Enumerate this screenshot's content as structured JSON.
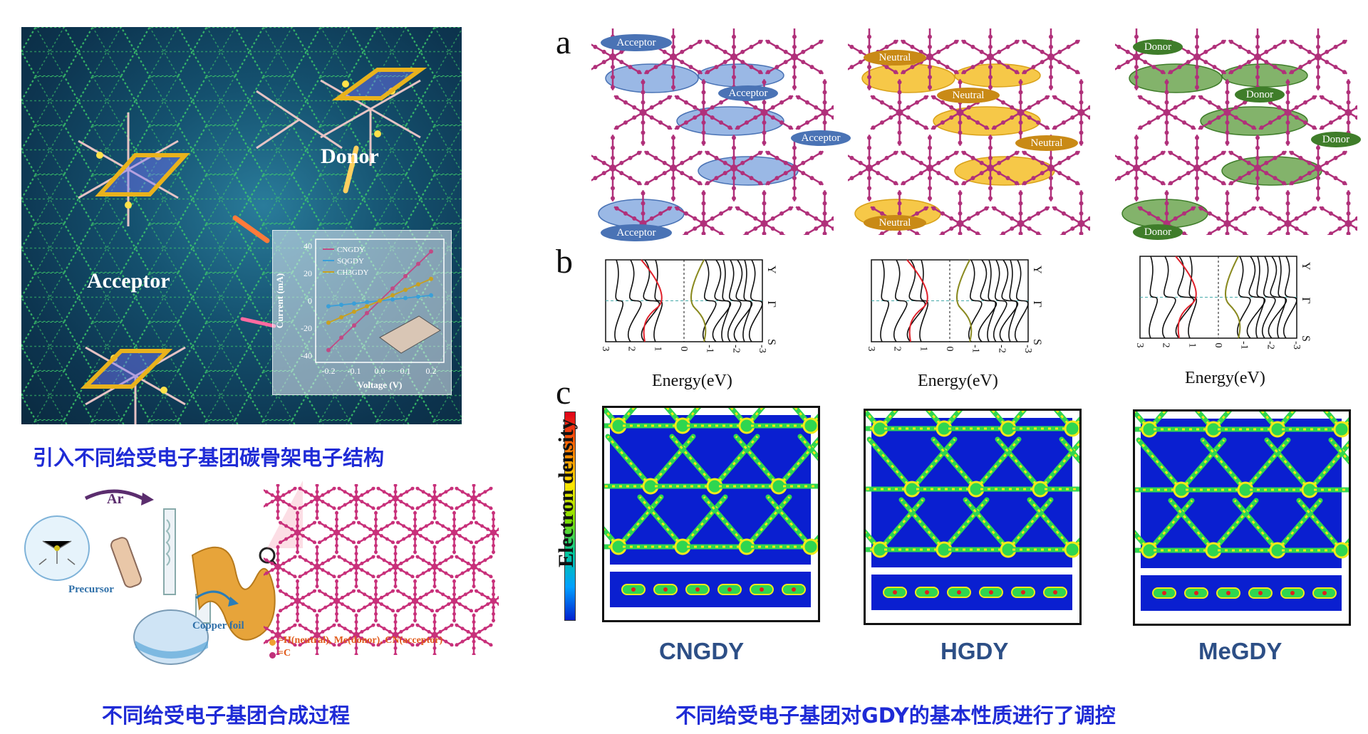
{
  "captions": {
    "left_top": "引入不同给受电子基团碳骨架电子结构",
    "left_bottom": "不同给受电子基团合成过程",
    "right_bottom": "不同给受电子基团对GDY的基本性质进行了调控"
  },
  "cover_figure": {
    "donor_label": "Donor",
    "acceptor_label": "Acceptor",
    "inset": {
      "y_axis_label": "Current (mA)",
      "x_axis_label": "Voltage (V)",
      "x_ticks": [
        "-0.2",
        "-0.1",
        "0.0",
        "0.1",
        "0.2"
      ],
      "y_ticks": [
        "40",
        "20",
        "0",
        "-20",
        "-40"
      ],
      "legend": [
        "CNGDY",
        "SQGDY",
        "CH3GDY"
      ],
      "legend_colors": [
        "#c04a85",
        "#3a9fd8",
        "#c8a020"
      ]
    }
  },
  "chart_data": {
    "type": "line",
    "title": "",
    "xlabel": "Voltage (V)",
    "ylabel": "Current (mA)",
    "xlim": [
      -0.25,
      0.25
    ],
    "ylim": [
      -45,
      45
    ],
    "x": [
      -0.2,
      -0.15,
      -0.1,
      -0.05,
      0.0,
      0.05,
      0.1,
      0.15,
      0.2
    ],
    "series": [
      {
        "name": "CNGDY",
        "values": [
          -36,
          -27,
          -18,
          -9,
          0,
          9,
          18,
          27,
          36
        ]
      },
      {
        "name": "SQGDY",
        "values": [
          -4,
          -3,
          -2,
          -1,
          0,
          1,
          2,
          3,
          4
        ]
      },
      {
        "name": "CH3GDY",
        "values": [
          -16,
          -12,
          -8,
          -4,
          0,
          4,
          8,
          12,
          16
        ]
      }
    ]
  },
  "synthesis": {
    "gas_label": "Ar",
    "precursor_label": "Precursor",
    "foil_label": "Copper foil",
    "legend_line1": "=H(neutral), Me(donor), CN(acceptor)",
    "legend_line2": "=C"
  },
  "panels": {
    "a": "a",
    "b": "b",
    "c": "c"
  },
  "panel_a": {
    "acceptor": [
      "Acceptor",
      "Acceptor",
      "Acceptor",
      "Acceptor"
    ],
    "neutral": [
      "Neutral",
      "Neutral",
      "Neutral",
      "Neutral"
    ],
    "donor": [
      "Donor",
      "Donor",
      "Donor",
      "Donor"
    ]
  },
  "panel_b": {
    "xlabel": "Energy(eV)",
    "x_ticks": [
      "3",
      "2",
      "1",
      "0",
      "-1",
      "-2",
      "-3"
    ],
    "k_labels": [
      "Y",
      "Γ",
      "S"
    ]
  },
  "panel_c": {
    "colorbar_label": "Electron density",
    "materials": [
      "CNGDY",
      "HGDY",
      "MeGDY"
    ]
  },
  "colors": {
    "caption_blue": "#1f2bd6",
    "material_name": "#2d4f86",
    "acceptor": "#4a73b5",
    "neutral": "#d9a21b",
    "donor": "#3f7d2a",
    "lattice_magenta": "#b0307a"
  }
}
